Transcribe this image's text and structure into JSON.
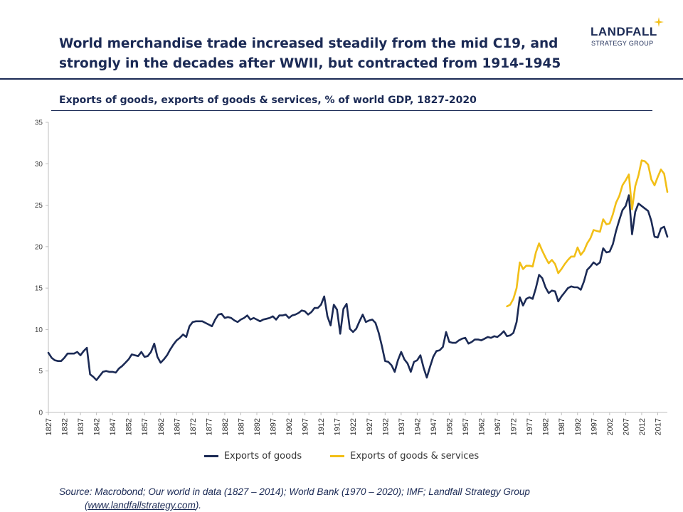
{
  "header": {
    "title_line1": "World merchandise trade increased steadily from the mid C19, and",
    "title_line2": "strongly in the decades after WWII, but contracted from 1914-1945"
  },
  "logo": {
    "main": "LANDFALL",
    "sub": "STRATEGY GROUP"
  },
  "colors": {
    "navy": "#1b2a55",
    "gold": "#f2bf17"
  },
  "source": {
    "text": "Source: Macrobond; Our world in data (1827 – 2014); World Bank (1970 – 2020); IMF; Landfall Strategy Group",
    "url": "www.landfallstrategy.com",
    "suffix": ")."
  },
  "chart_data": {
    "type": "line",
    "title": "Exports of goods, exports of goods & services, % of world GDP, 1827-2020",
    "ylim": [
      0,
      35
    ],
    "yticks": [
      0,
      5,
      10,
      15,
      20,
      25,
      30,
      35
    ],
    "xlim": [
      1827,
      2020
    ],
    "xticks": [
      1827,
      1832,
      1837,
      1842,
      1847,
      1852,
      1857,
      1862,
      1867,
      1872,
      1877,
      1882,
      1887,
      1892,
      1897,
      1902,
      1907,
      1912,
      1917,
      1922,
      1927,
      1932,
      1937,
      1942,
      1947,
      1952,
      1957,
      1962,
      1967,
      1972,
      1977,
      1982,
      1987,
      1992,
      1997,
      2002,
      2007,
      2012,
      2017
    ],
    "legend_position": "bottom",
    "series": [
      {
        "name": "Exports of goods",
        "color": "#1b2a55",
        "x": [
          1827,
          1828,
          1829,
          1830,
          1831,
          1832,
          1833,
          1834,
          1835,
          1836,
          1837,
          1838,
          1839,
          1840,
          1841,
          1842,
          1843,
          1844,
          1845,
          1846,
          1847,
          1848,
          1849,
          1850,
          1851,
          1852,
          1853,
          1854,
          1855,
          1856,
          1857,
          1858,
          1859,
          1860,
          1861,
          1862,
          1863,
          1864,
          1865,
          1866,
          1867,
          1868,
          1869,
          1870,
          1871,
          1872,
          1873,
          1874,
          1875,
          1876,
          1877,
          1878,
          1879,
          1880,
          1881,
          1882,
          1883,
          1884,
          1885,
          1886,
          1887,
          1888,
          1889,
          1890,
          1891,
          1892,
          1893,
          1894,
          1895,
          1896,
          1897,
          1898,
          1899,
          1900,
          1901,
          1902,
          1903,
          1904,
          1905,
          1906,
          1907,
          1908,
          1909,
          1910,
          1911,
          1912,
          1913,
          1914,
          1915,
          1916,
          1917,
          1918,
          1919,
          1920,
          1921,
          1922,
          1923,
          1924,
          1925,
          1926,
          1927,
          1928,
          1929,
          1930,
          1931,
          1932,
          1933,
          1934,
          1935,
          1936,
          1937,
          1938,
          1939,
          1940,
          1941,
          1942,
          1943,
          1944,
          1945,
          1946,
          1947,
          1948,
          1949,
          1950,
          1951,
          1952,
          1953,
          1954,
          1955,
          1956,
          1957,
          1958,
          1959,
          1960,
          1961,
          1962,
          1963,
          1964,
          1965,
          1966,
          1967,
          1968,
          1969,
          1970,
          1971,
          1972,
          1973,
          1974,
          1975,
          1976,
          1977,
          1978,
          1979,
          1980,
          1981,
          1982,
          1983,
          1984,
          1985,
          1986,
          1987,
          1988,
          1989,
          1990,
          1991,
          1992,
          1993,
          1994,
          1995,
          1996,
          1997,
          1998,
          1999,
          2000,
          2001,
          2002,
          2003,
          2004,
          2005,
          2006,
          2007,
          2008,
          2009,
          2010,
          2011,
          2012,
          2013,
          2014,
          2015,
          2016,
          2017,
          2018,
          2019,
          2020
        ],
        "values": [
          7.2,
          6.6,
          6.3,
          6.2,
          6.2,
          6.6,
          7.1,
          7.1,
          7.1,
          7.3,
          6.9,
          7.4,
          7.8,
          4.6,
          4.3,
          3.9,
          4.4,
          4.9,
          5.0,
          4.9,
          4.9,
          4.8,
          5.3,
          5.6,
          6.0,
          6.4,
          7.0,
          6.9,
          6.8,
          7.3,
          6.7,
          6.8,
          7.3,
          8.3,
          6.7,
          6.0,
          6.4,
          6.9,
          7.6,
          8.2,
          8.7,
          9.0,
          9.4,
          9.1,
          10.4,
          10.9,
          11.0,
          11.0,
          11.0,
          10.8,
          10.6,
          10.4,
          11.2,
          11.8,
          11.9,
          11.4,
          11.5,
          11.4,
          11.1,
          10.9,
          11.2,
          11.4,
          11.7,
          11.2,
          11.4,
          11.2,
          11.0,
          11.2,
          11.3,
          11.4,
          11.6,
          11.2,
          11.7,
          11.7,
          11.8,
          11.4,
          11.7,
          11.8,
          12.0,
          12.3,
          12.2,
          11.8,
          12.1,
          12.6,
          12.6,
          13.0,
          14.0,
          11.6,
          10.5,
          13.0,
          12.4,
          9.5,
          12.5,
          13.1,
          10.1,
          9.7,
          10.1,
          11.0,
          11.8,
          10.9,
          11.1,
          11.2,
          10.8,
          9.6,
          8.0,
          6.2,
          6.1,
          5.7,
          4.9,
          6.3,
          7.3,
          6.4,
          5.9,
          4.9,
          6.1,
          6.3,
          6.9,
          5.4,
          4.2,
          5.5,
          6.7,
          7.4,
          7.5,
          7.9,
          9.7,
          8.5,
          8.4,
          8.4,
          8.7,
          8.9,
          9.0,
          8.3,
          8.5,
          8.8,
          8.8,
          8.7,
          8.9,
          9.1,
          9.0,
          9.2,
          9.1,
          9.4,
          9.8,
          9.2,
          9.3,
          9.6,
          10.9,
          13.9,
          12.9,
          13.7,
          13.9,
          13.7,
          15.0,
          16.6,
          16.2,
          15.1,
          14.4,
          14.7,
          14.6,
          13.4,
          14.0,
          14.5,
          15.0,
          15.2,
          15.1,
          15.1,
          14.8,
          15.8,
          17.2,
          17.6,
          18.1,
          17.8,
          18.1,
          19.8,
          19.3,
          19.4,
          20.3,
          21.9,
          23.2,
          24.4,
          24.9,
          26.2,
          21.5,
          24.2,
          25.2,
          24.9,
          24.6,
          24.3,
          23.1,
          21.2,
          21.1,
          22.2,
          22.4,
          21.2
        ]
      },
      {
        "name": "Exports of goods & services",
        "color": "#f2bf17",
        "x": [
          1970,
          1971,
          1972,
          1973,
          1974,
          1975,
          1976,
          1977,
          1978,
          1979,
          1980,
          1981,
          1982,
          1983,
          1984,
          1985,
          1986,
          1987,
          1988,
          1989,
          1990,
          1991,
          1992,
          1993,
          1994,
          1995,
          1996,
          1997,
          1998,
          1999,
          2000,
          2001,
          2002,
          2003,
          2004,
          2005,
          2006,
          2007,
          2008,
          2009,
          2010,
          2011,
          2012,
          2013,
          2014,
          2015,
          2016,
          2017,
          2018,
          2019,
          2020
        ],
        "values": [
          12.8,
          13.0,
          13.7,
          15.0,
          18.1,
          17.3,
          17.7,
          17.7,
          17.6,
          19.3,
          20.4,
          19.5,
          18.7,
          18.0,
          18.4,
          17.9,
          16.8,
          17.3,
          17.9,
          18.4,
          18.8,
          18.8,
          19.9,
          19.0,
          19.5,
          20.4,
          21.0,
          22.0,
          21.9,
          21.8,
          23.3,
          22.7,
          22.8,
          23.9,
          25.3,
          26.1,
          27.4,
          28.0,
          28.7,
          24.5,
          27.3,
          28.6,
          30.4,
          30.3,
          29.9,
          28.1,
          27.4,
          28.4,
          29.3,
          28.8,
          26.6
        ]
      }
    ]
  }
}
